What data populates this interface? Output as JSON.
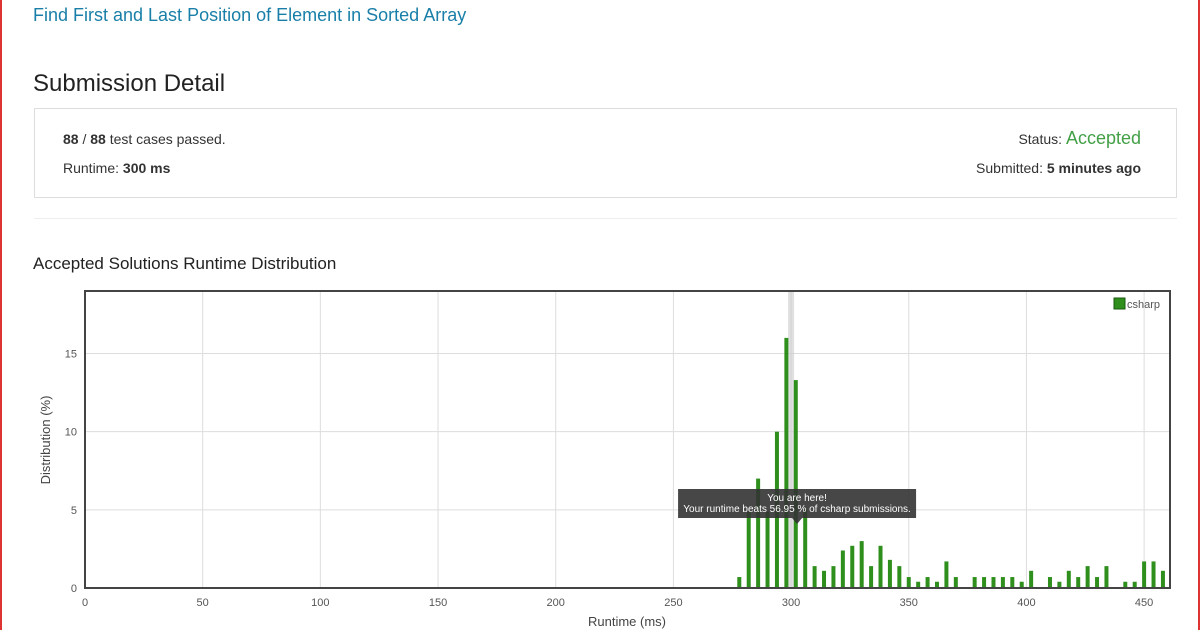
{
  "header": {
    "title": "Find First and Last Position of Element in Sorted Array"
  },
  "submission": {
    "heading": "Submission Detail",
    "passed": "88",
    "separator": "/",
    "total": "88",
    "passed_label": "test cases passed.",
    "runtime_label": "Runtime:",
    "runtime": "300 ms",
    "status_label": "Status:",
    "status": "Accepted",
    "submitted_label": "Submitted:",
    "submitted": "5 minutes ago"
  },
  "chart_data": {
    "type": "bar",
    "title": "Accepted Solutions Runtime Distribution",
    "x_label": "Runtime (ms)",
    "y_label": "Distribution (%)",
    "series": [
      {
        "name": "csharp",
        "color": "#2e8f1c",
        "x": [
          278,
          282,
          286,
          290,
          294,
          298,
          302,
          306,
          310,
          314,
          318,
          322,
          326,
          330,
          334,
          338,
          342,
          346,
          350,
          354,
          358,
          362,
          366,
          370,
          378,
          382,
          386,
          390,
          394,
          398,
          402,
          410,
          414,
          418,
          422,
          426,
          430,
          434,
          442,
          446,
          450,
          454,
          458
        ],
        "values": [
          0.7,
          4.9,
          7,
          4.9,
          10,
          16,
          13.3,
          5,
          1.4,
          1.1,
          1.4,
          2.4,
          2.7,
          3,
          1.4,
          2.7,
          1.8,
          1.4,
          0.7,
          0.4,
          0.7,
          0.4,
          1.7,
          0.7,
          0.7,
          0.7,
          0.7,
          0.7,
          0.7,
          0.4,
          1.1,
          0.7,
          0.4,
          1.1,
          0.7,
          1.4,
          0.7,
          1.4,
          0.4,
          0.4,
          1.7,
          1.7,
          1.1
        ]
      }
    ],
    "xlim": [
      0,
      461
    ],
    "ylim": [
      0,
      19
    ],
    "xticks": [
      0,
      50,
      100,
      150,
      200,
      250,
      300,
      350,
      400,
      450
    ],
    "yticks": [
      0,
      5,
      10,
      15
    ],
    "grid": true,
    "legend": "top-right",
    "highlight_x": 300,
    "tooltip": [
      "You are here!",
      "Your runtime beats 56.95 % of csharp submissions."
    ]
  }
}
